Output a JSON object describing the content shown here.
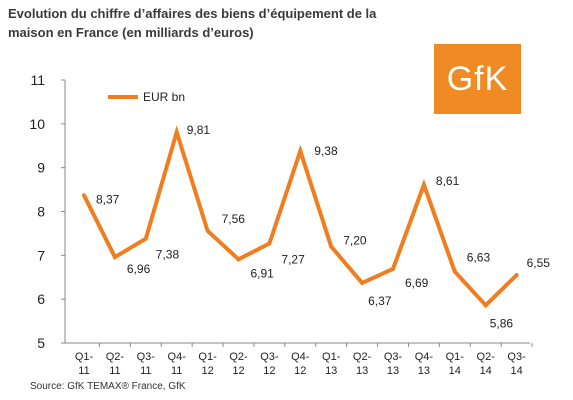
{
  "title": "Evolution du chiffre d’affaires des biens d’équipement de la maison en France (en milliards d’euros)",
  "logo": {
    "text": "GfK",
    "color": "#f08a24"
  },
  "source": "Source: GfK TEMAX® France, GfK",
  "chart_data": {
    "type": "line",
    "title": "Evolution du chiffre d’affaires des biens d’équipement de la maison en France (en milliards d’euros)",
    "categories": [
      [
        "Q1-",
        "11"
      ],
      [
        "Q2-",
        "11"
      ],
      [
        "Q3-",
        "11"
      ],
      [
        "Q4-",
        "11"
      ],
      [
        "Q1-",
        "12"
      ],
      [
        "Q2-",
        "12"
      ],
      [
        "Q3-",
        "12"
      ],
      [
        "Q4-",
        "12"
      ],
      [
        "Q1-",
        "13"
      ],
      [
        "Q2-",
        "13"
      ],
      [
        "Q3-",
        "13"
      ],
      [
        "Q4-",
        "13"
      ],
      [
        "Q1-",
        "14"
      ],
      [
        "Q2-",
        "14"
      ],
      [
        "Q3-",
        "14"
      ]
    ],
    "series": [
      {
        "name": "EUR bn",
        "color": "#f07d1e",
        "values": [
          8.37,
          6.96,
          7.38,
          9.81,
          7.56,
          6.91,
          7.27,
          9.38,
          7.2,
          6.37,
          6.69,
          8.61,
          6.63,
          5.86,
          6.55
        ],
        "labels": [
          "8,37",
          "6,96",
          "7,38",
          "9,81",
          "7,56",
          "6,91",
          "7,27",
          "9,38",
          "7,20",
          "6,37",
          "6,69",
          "8,61",
          "6,63",
          "5,86",
          "6,55"
        ]
      }
    ],
    "ylim": [
      5,
      11
    ],
    "yticks": [
      "5",
      "6",
      "7",
      "8",
      "9",
      "10",
      "11"
    ],
    "grid": false,
    "legend": "top-left"
  }
}
